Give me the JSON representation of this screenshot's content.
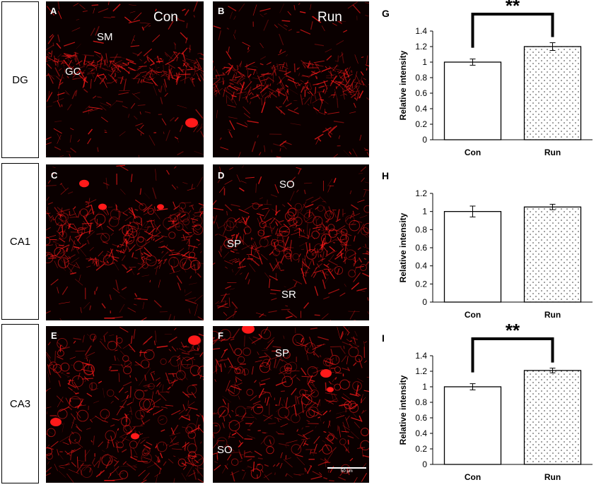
{
  "rows": [
    {
      "label": "DG"
    },
    {
      "label": "CA1"
    },
    {
      "label": "CA3"
    }
  ],
  "panels": [
    {
      "letter": "A",
      "condition": "Con",
      "regions": [
        "SM",
        "GC"
      ]
    },
    {
      "letter": "B",
      "condition": "Run",
      "regions": []
    },
    {
      "letter": "C",
      "condition": "",
      "regions": []
    },
    {
      "letter": "D",
      "condition": "",
      "regions": [
        "SO",
        "SP",
        "SR"
      ]
    },
    {
      "letter": "E",
      "condition": "",
      "regions": []
    },
    {
      "letter": "F",
      "condition": "",
      "regions": [
        "SP",
        "SO"
      ],
      "scale_text": "50 μm"
    }
  ],
  "colors": {
    "stain": "#ff1a1a",
    "background": "#0a0000"
  },
  "chart_data": [
    {
      "panel": "G",
      "type": "bar",
      "categories": [
        "Con",
        "Run"
      ],
      "values": [
        1.0,
        1.2
      ],
      "errors": [
        0.04,
        0.05
      ],
      "ylabel": "Relative intensity",
      "ylim": [
        0,
        1.4
      ],
      "yticks": [
        "0",
        "0.2",
        "0.4",
        "0.6",
        "0.8",
        "1",
        "1.2",
        "1.4"
      ],
      "fills": [
        "white",
        "dotted"
      ],
      "significance": "**"
    },
    {
      "panel": "H",
      "type": "bar",
      "categories": [
        "Con",
        "Run"
      ],
      "values": [
        1.0,
        1.05
      ],
      "errors": [
        0.06,
        0.03
      ],
      "ylabel": "Relative intensity",
      "ylim": [
        0,
        1.2
      ],
      "yticks": [
        "0",
        "0.2",
        "0.4",
        "0.6",
        "0.8",
        "1",
        "1.2"
      ],
      "fills": [
        "white",
        "dotted"
      ],
      "significance": ""
    },
    {
      "panel": "I",
      "type": "bar",
      "categories": [
        "Con",
        "Run"
      ],
      "values": [
        1.0,
        1.21
      ],
      "errors": [
        0.04,
        0.03
      ],
      "ylabel": "Relative intensity",
      "ylim": [
        0,
        1.4
      ],
      "yticks": [
        "0",
        "0.2",
        "0.4",
        "0.6",
        "0.8",
        "1",
        "1.2",
        "1.4"
      ],
      "fills": [
        "white",
        "dotted"
      ],
      "significance": "**"
    }
  ]
}
